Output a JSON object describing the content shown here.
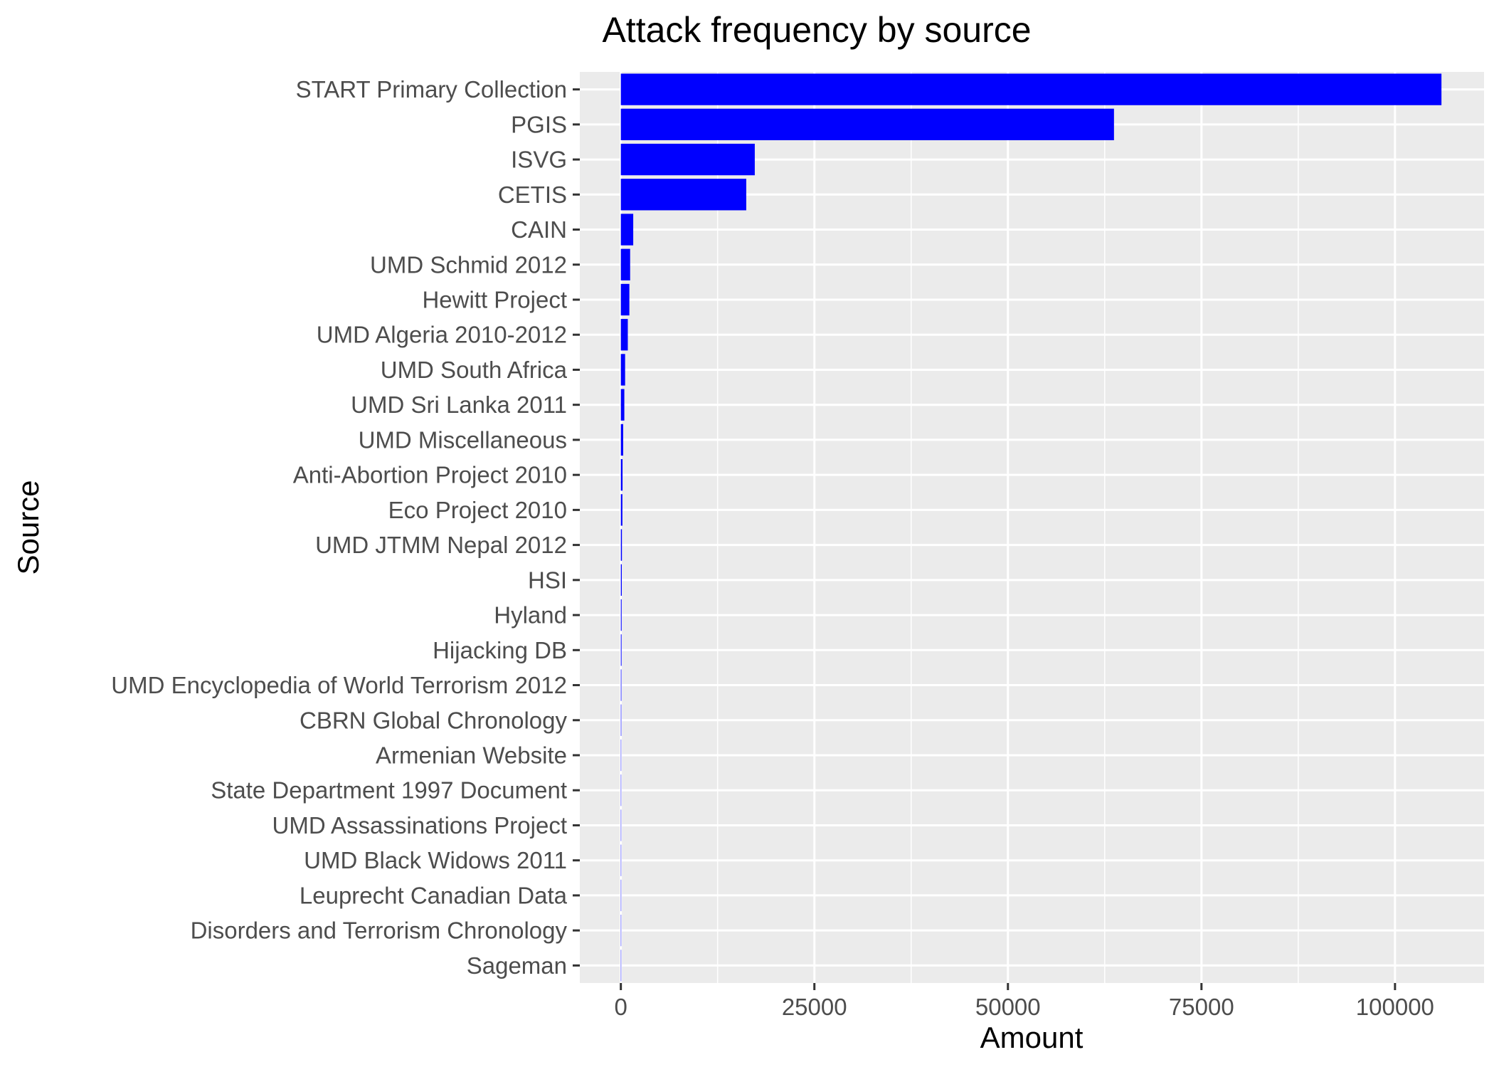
{
  "chart_data": {
    "type": "bar",
    "orientation": "horizontal",
    "title": "Attack frequency by source",
    "xlabel": "Amount",
    "ylabel": "Source",
    "xlim": [
      -5300,
      111500
    ],
    "xticks": [
      0,
      25000,
      50000,
      75000,
      100000
    ],
    "xtick_labels": [
      "0",
      "25000",
      "50000",
      "75000",
      "100000"
    ],
    "grid": true,
    "bar_color": "#0000ff",
    "panel_color": "#ebebeb",
    "categories": [
      "START Primary Collection",
      "PGIS",
      "ISVG",
      "CETIS",
      "CAIN",
      "UMD Schmid 2012",
      "Hewitt Project",
      "UMD Algeria 2010-2012",
      "UMD South Africa",
      "UMD Sri Lanka 2011",
      "UMD Miscellaneous",
      "Anti-Abortion Project 2010",
      "Eco Project 2010",
      "UMD JTMM Nepal 2012",
      "HSI",
      "Hyland",
      "Hijacking DB",
      "UMD Encyclopedia of World Terrorism 2012",
      "CBRN Global Chronology",
      "Armenian Website",
      "State Department 1997 Document",
      "UMD Assassinations Project",
      "UMD Black Widows 2011",
      "Leuprecht Canadian Data",
      "Disorders and Terrorism Chronology",
      "Sageman"
    ],
    "values": [
      106000,
      63700,
      17300,
      16200,
      1600,
      1200,
      1100,
      900,
      550,
      450,
      300,
      220,
      200,
      140,
      120,
      100,
      90,
      70,
      60,
      40,
      30,
      20,
      10,
      8,
      5,
      3
    ]
  }
}
